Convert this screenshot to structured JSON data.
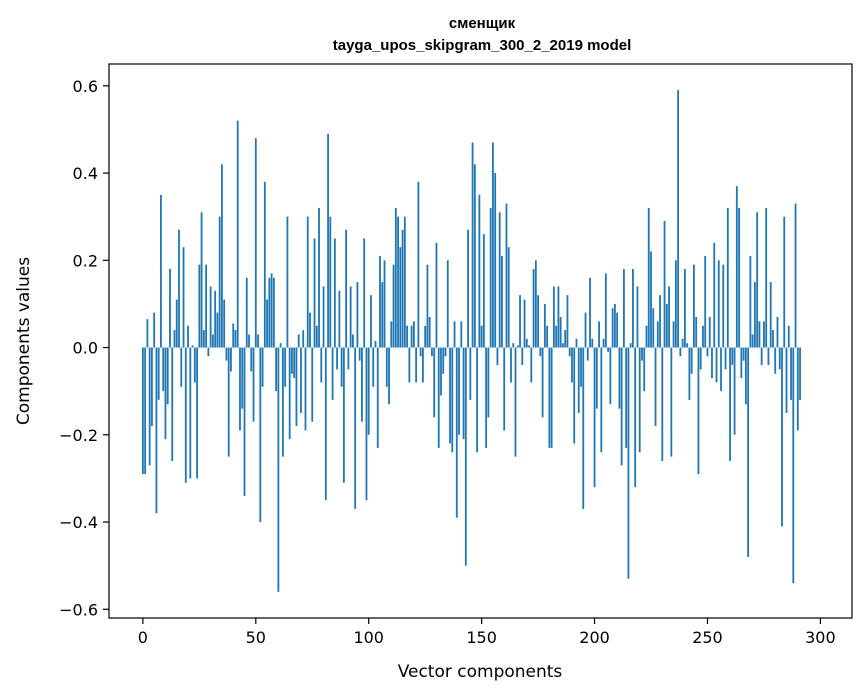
{
  "chart_data": {
    "type": "bar",
    "title_line1": "сменщик",
    "title_line2": "tayga_upos_skipgram_300_2_2019 model",
    "xlabel": "Vector components",
    "ylabel": "Components values",
    "xlim": [
      -15,
      314
    ],
    "ylim": [
      -0.62,
      0.65
    ],
    "xticks": [
      0,
      50,
      100,
      150,
      200,
      250,
      300
    ],
    "xtick_labels": [
      "0",
      "50",
      "100",
      "150",
      "200",
      "250",
      "300"
    ],
    "yticks": [
      -0.6,
      -0.4,
      -0.2,
      0.0,
      0.2,
      0.4,
      0.6
    ],
    "ytick_labels": [
      "−0.6",
      "−0.4",
      "−0.2",
      "0.0",
      "0.2",
      "0.4",
      "0.6"
    ],
    "bar_color": "#1f77b4",
    "grid": false,
    "values": [
      -0.29,
      -0.29,
      0.065,
      -0.27,
      -0.18,
      0.08,
      -0.38,
      -0.12,
      0.35,
      -0.1,
      -0.21,
      -0.13,
      0.18,
      -0.26,
      0.04,
      0.11,
      0.27,
      -0.09,
      0.23,
      -0.31,
      0.05,
      -0.3,
      0.005,
      -0.08,
      -0.3,
      0.19,
      0.31,
      0.04,
      0.19,
      -0.02,
      0.14,
      0.03,
      0.13,
      0.08,
      0.3,
      0.42,
      0.11,
      -0.03,
      -0.25,
      -0.055,
      0.055,
      0.04,
      0.52,
      -0.19,
      -0.14,
      -0.34,
      0.16,
      0.03,
      -0.055,
      -0.17,
      0.48,
      0.03,
      -0.4,
      -0.09,
      0.38,
      0.11,
      0.16,
      0.17,
      0.16,
      -0.1,
      -0.56,
      0.01,
      -0.25,
      -0.09,
      0.3,
      -0.21,
      -0.06,
      -0.07,
      -0.18,
      0.03,
      -0.15,
      0.04,
      -0.19,
      0.3,
      0.08,
      -0.17,
      0.25,
      0.05,
      0.32,
      -0.08,
      0.14,
      -0.35,
      0.49,
      0.3,
      -0.12,
      0.25,
      -0.05,
      0.13,
      -0.09,
      -0.31,
      0.27,
      -0.05,
      0.14,
      0.03,
      -0.37,
      0.15,
      -0.03,
      -0.17,
      0.25,
      -0.35,
      -0.2,
      0.12,
      -0.09,
      0.015,
      -0.23,
      0.21,
      0.15,
      0.2,
      -0.09,
      -0.13,
      0.06,
      0.19,
      0.32,
      0.3,
      0.23,
      0.27,
      0.3,
      0.05,
      -0.08,
      0.05,
      0.06,
      -0.08,
      0.38,
      -0.02,
      -0.08,
      0.05,
      0.19,
      0.07,
      -0.02,
      -0.16,
      0.24,
      -0.23,
      -0.11,
      -0.06,
      -0.02,
      0.2,
      -0.22,
      -0.24,
      0.06,
      -0.39,
      -0.2,
      0.06,
      -0.21,
      -0.5,
      0.27,
      -0.12,
      0.47,
      0.42,
      -0.24,
      0.35,
      0.05,
      0.26,
      -0.23,
      -0.16,
      0.32,
      0.47,
      0.4,
      -0.04,
      0.31,
      0.21,
      -0.19,
      0.33,
      0.23,
      -0.08,
      0.01,
      -0.25,
      0.005,
      0.12,
      -0.04,
      0.11,
      0.02,
      0.005,
      -0.08,
      0.18,
      0.2,
      0.12,
      -0.02,
      -0.16,
      0.1,
      0.05,
      -0.23,
      -0.23,
      0.14,
      0.05,
      0.14,
      0.07,
      0.01,
      0.04,
      0.12,
      -0.02,
      -0.08,
      -0.22,
      0.02,
      -0.15,
      -0.09,
      -0.37,
      0.08,
      -0.03,
      0.16,
      0.02,
      -0.32,
      -0.14,
      0.06,
      -0.24,
      0.02,
      0.17,
      -0.01,
      -0.13,
      0.09,
      0.1,
      0.08,
      -0.14,
      -0.27,
      0.18,
      -0.23,
      -0.53,
      0.01,
      0.18,
      -0.32,
      0.14,
      -0.24,
      -0.03,
      -0.1,
      0.05,
      0.32,
      0.22,
      0.09,
      -0.18,
      0.06,
      0.12,
      -0.26,
      0.29,
      0.1,
      0.14,
      -0.25,
      0.06,
      0.2,
      0.59,
      -0.02,
      0.02,
      0.18,
      0.01,
      -0.12,
      -0.06,
      0.19,
      0.07,
      -0.29,
      -0.05,
      0.05,
      0.21,
      -0.02,
      0.07,
      -0.07,
      0.24,
      -0.08,
      0.2,
      -0.1,
      0.19,
      -0.05,
      0.32,
      -0.26,
      -0.04,
      -0.2,
      0.37,
      0.32,
      -0.07,
      -0.03,
      -0.13,
      -0.48,
      0.21,
      0.03,
      0.15,
      0.31,
      0.06,
      -0.04,
      0.06,
      0.32,
      -0.04,
      0.15,
      0.04,
      -0.06,
      0.07,
      -0.05,
      -0.41,
      0.3,
      -0.15,
      0.05,
      -0.12,
      -0.54,
      0.33,
      -0.19,
      -0.12
    ]
  }
}
